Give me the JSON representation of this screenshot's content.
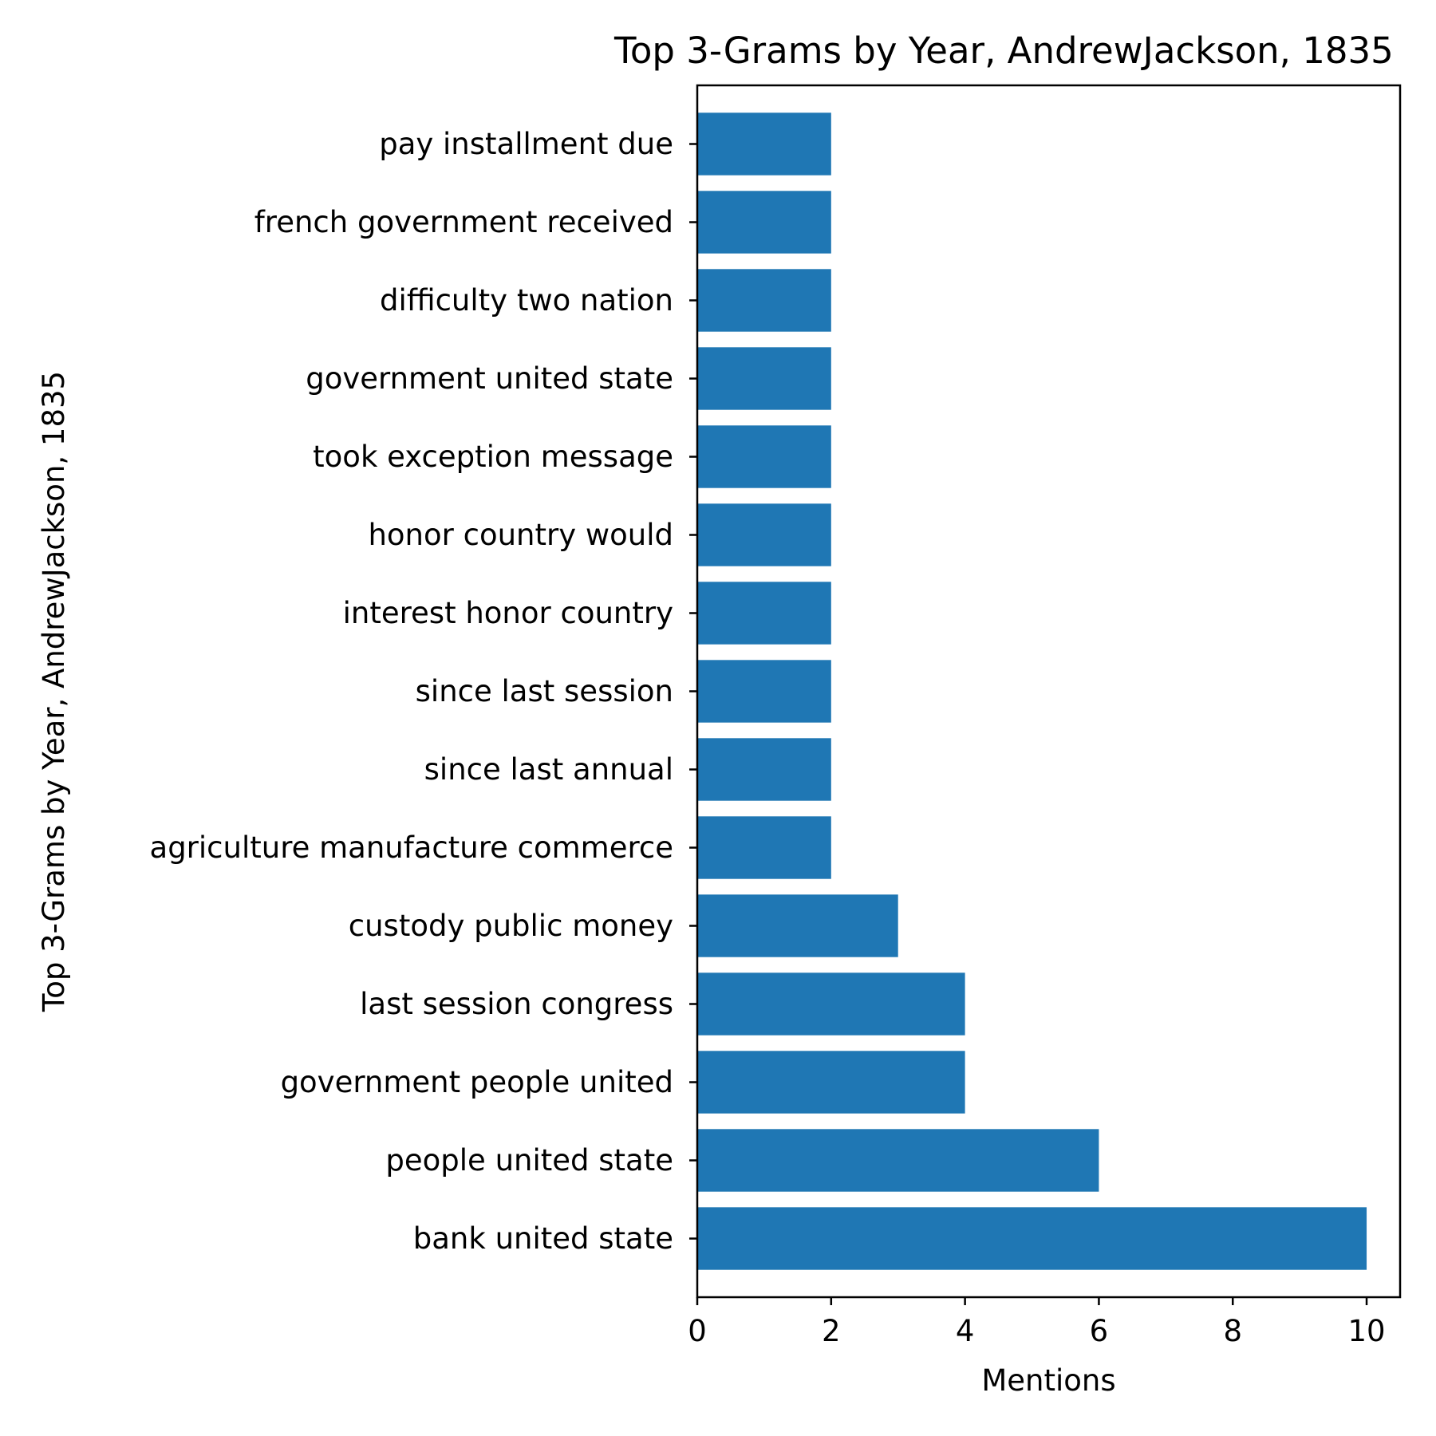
{
  "chart_data": {
    "type": "bar",
    "orientation": "horizontal",
    "title": "Top 3-Grams by Year, AndrewJackson, 1835",
    "xlabel": "Mentions",
    "ylabel": "Top 3-Grams by Year, AndrewJackson, 1835",
    "xlim": [
      0,
      10.5
    ],
    "xticks": [
      0,
      2,
      4,
      6,
      8,
      10
    ],
    "grid": false,
    "bar_color": "#1f77b4",
    "categories": [
      "bank united state",
      "people united state",
      "government people united",
      "last session congress",
      "custody public money",
      "agriculture manufacture commerce",
      "since last annual",
      "since last session",
      "interest honor country",
      "honor country would",
      "took exception message",
      "government united state",
      "difficulty two nation",
      "french government received",
      "pay installment due"
    ],
    "values": [
      10,
      6,
      4,
      4,
      3,
      2,
      2,
      2,
      2,
      2,
      2,
      2,
      2,
      2,
      2
    ]
  }
}
